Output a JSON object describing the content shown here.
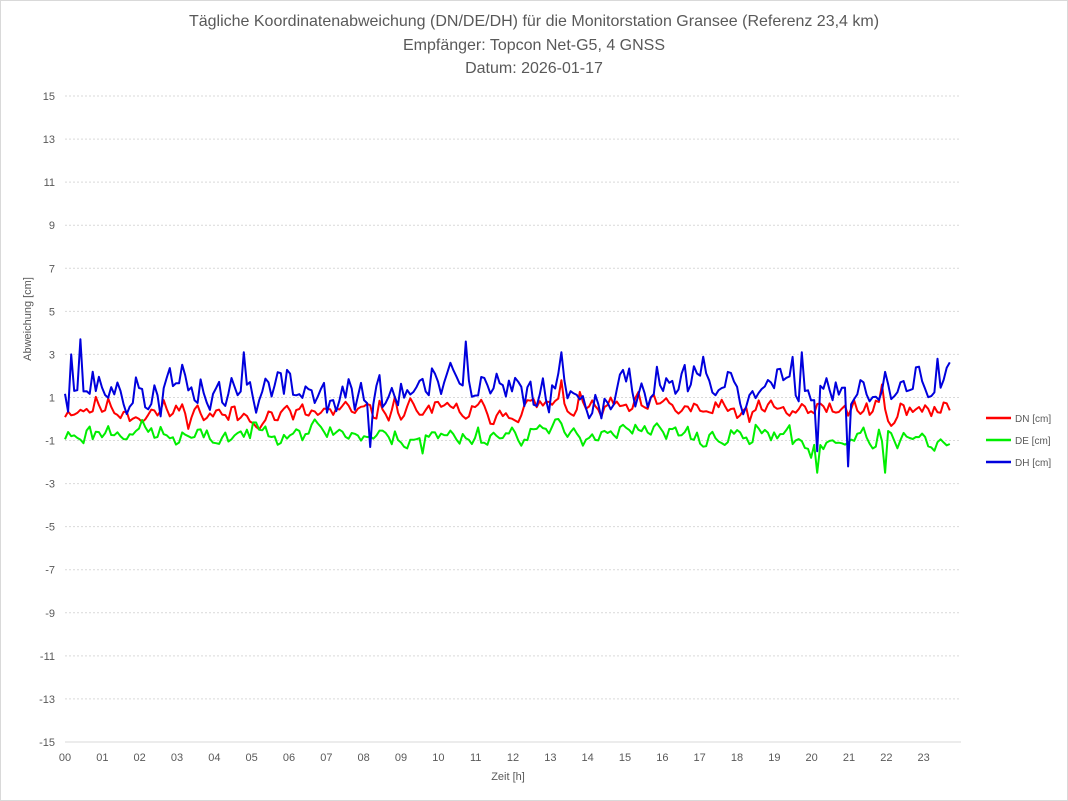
{
  "chart_data": {
    "type": "line",
    "title_lines": [
      "Tägliche Koordinatenabweichung (DN/DE/DH) für die Monitorstation Gransee (Referenz 23,4 km)",
      "Empfänger: Topcon Net-G5, 4 GNSS",
      "Datum: 2026-01-17"
    ],
    "xlabel": "Zeit [h]",
    "ylabel": "Abweichung [cm]",
    "xlim": [
      0,
      24
    ],
    "ylim": [
      -15,
      15
    ],
    "x_ticks": [
      "00",
      "01",
      "02",
      "03",
      "04",
      "05",
      "06",
      "07",
      "08",
      "09",
      "10",
      "11",
      "12",
      "13",
      "14",
      "15",
      "16",
      "17",
      "18",
      "19",
      "20",
      "21",
      "22",
      "23"
    ],
    "y_ticks": [
      15,
      13,
      11,
      9,
      7,
      5,
      3,
      1,
      -1,
      -3,
      -5,
      -7,
      -9,
      -11,
      -13,
      -15
    ],
    "y_tick_labels": [
      "15",
      "13",
      "11",
      "9",
      "7",
      "5",
      "3",
      "1",
      "-1",
      "-3",
      "-5",
      "-7",
      "-9",
      "-11",
      "-13",
      "-15"
    ],
    "grid": true,
    "legend_position": "right",
    "x_end": 23.7,
    "samples": 288,
    "series": [
      {
        "name": "DN [cm]",
        "color": "#ff0000",
        "mean": 0.3,
        "noise": 0.45,
        "seed": 11,
        "knots": [
          [
            0,
            0.4
          ],
          [
            1,
            0.6
          ],
          [
            2,
            0.2
          ],
          [
            3,
            0.4
          ],
          [
            4,
            0.2
          ],
          [
            5,
            0.1
          ],
          [
            6,
            0.2
          ],
          [
            7,
            0.3
          ],
          [
            8,
            0.3
          ],
          [
            9,
            0.5
          ],
          [
            10,
            0.4
          ],
          [
            11,
            0.3
          ],
          [
            12,
            0.4
          ],
          [
            13,
            0.7
          ],
          [
            14,
            0.5
          ],
          [
            15,
            0.5
          ],
          [
            16,
            0.6
          ],
          [
            17,
            0.4
          ],
          [
            18,
            0.3
          ],
          [
            19,
            0.4
          ],
          [
            20,
            0.4
          ],
          [
            21,
            0.5
          ],
          [
            22,
            0.4
          ],
          [
            23,
            0.3
          ],
          [
            23.7,
            0.6
          ]
        ]
      },
      {
        "name": "DE [cm]",
        "color": "#00ee00",
        "mean": -0.8,
        "noise": 0.4,
        "seed": 23,
        "knots": [
          [
            0,
            -0.8
          ],
          [
            1,
            -0.6
          ],
          [
            2,
            -0.5
          ],
          [
            3,
            -0.9
          ],
          [
            4,
            -0.9
          ],
          [
            5,
            -0.6
          ],
          [
            6,
            -0.5
          ],
          [
            7,
            -0.5
          ],
          [
            8,
            -0.8
          ],
          [
            9,
            -0.9
          ],
          [
            10,
            -0.8
          ],
          [
            11,
            -0.8
          ],
          [
            12,
            -0.7
          ],
          [
            13,
            -0.5
          ],
          [
            14,
            -0.7
          ],
          [
            15,
            -0.6
          ],
          [
            16,
            -0.6
          ],
          [
            17,
            -0.9
          ],
          [
            18,
            -0.9
          ],
          [
            19,
            -0.6
          ],
          [
            20,
            -1.2
          ],
          [
            21,
            -0.9
          ],
          [
            22,
            -0.9
          ],
          [
            23,
            -1.1
          ],
          [
            23.7,
            -1.3
          ]
        ]
      },
      {
        "name": "DH [cm]",
        "color": "#0000dd",
        "mean": 1.3,
        "noise": 0.85,
        "seed": 37,
        "knots": [
          [
            0,
            1.6
          ],
          [
            1,
            1.5
          ],
          [
            2,
            0.9
          ],
          [
            3,
            1.5
          ],
          [
            4,
            1.2
          ],
          [
            5,
            1.3
          ],
          [
            6,
            1.5
          ],
          [
            7,
            1.1
          ],
          [
            8,
            0.9
          ],
          [
            9,
            1.2
          ],
          [
            10,
            1.6
          ],
          [
            11,
            1.4
          ],
          [
            12,
            1.2
          ],
          [
            13,
            1.6
          ],
          [
            14,
            1.1
          ],
          [
            15,
            1.3
          ],
          [
            16,
            1.8
          ],
          [
            17,
            1.6
          ],
          [
            18,
            0.9
          ],
          [
            19,
            1.4
          ],
          [
            20,
            1.7
          ],
          [
            21,
            1.3
          ],
          [
            22,
            1.0
          ],
          [
            23,
            1.6
          ],
          [
            23.7,
            1.5
          ]
        ]
      }
    ],
    "spikes": [
      {
        "series": 2,
        "x": 0.38,
        "y": 3.7
      },
      {
        "series": 2,
        "x": 0.18,
        "y": 3.0
      },
      {
        "series": 2,
        "x": 10.75,
        "y": 3.6
      },
      {
        "series": 2,
        "x": 20.95,
        "y": 3.9
      },
      {
        "series": 2,
        "x": 21.0,
        "y": -2.2
      },
      {
        "series": 2,
        "x": 8.15,
        "y": -1.3
      },
      {
        "series": 2,
        "x": 20.15,
        "y": -1.5
      },
      {
        "series": 2,
        "x": 4.8,
        "y": 3.1
      },
      {
        "series": 2,
        "x": 13.3,
        "y": 3.1
      },
      {
        "series": 2,
        "x": 19.7,
        "y": 3.1
      },
      {
        "series": 2,
        "x": 23.4,
        "y": 2.8
      },
      {
        "series": 1,
        "x": 20.15,
        "y": -2.5
      },
      {
        "series": 1,
        "x": 21.95,
        "y": -2.5
      },
      {
        "series": 1,
        "x": 20.0,
        "y": -1.8
      },
      {
        "series": 1,
        "x": 9.55,
        "y": -1.6
      },
      {
        "series": 0,
        "x": 13.3,
        "y": 1.8
      },
      {
        "series": 0,
        "x": 21.9,
        "y": 1.6
      }
    ]
  }
}
